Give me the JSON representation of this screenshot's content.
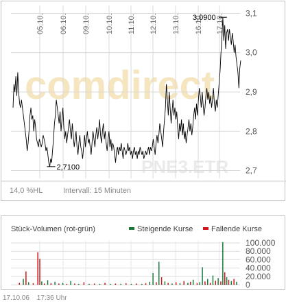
{
  "chart_data": [
    {
      "type": "line",
      "name_hidden": true,
      "watermark_logo": "comdirect",
      "watermark_symbol": "PNE3.ETR",
      "x_ticks": [
        "05.10.",
        "06.10.",
        "09.10.",
        "10.10.",
        "11.10.",
        "12.10.",
        "13.10.",
        "16.10.",
        "17.10."
      ],
      "y_ticks": [
        "3,1",
        "3,0",
        "2,9",
        "2,8",
        "2,7"
      ],
      "ylim": [
        2.68,
        3.12
      ],
      "annotations": [
        {
          "label": "3,0900",
          "x_index": 305,
          "value": 3.09
        },
        {
          "label": "2,7100",
          "x_index": 55,
          "value": 2.71
        }
      ],
      "footer_left": "14,0 %HL",
      "interval_label": "Intervall: 15 Minuten",
      "grid": true,
      "line_color": "#000000",
      "values": [
        2.86,
        2.92,
        2.9,
        2.94,
        2.89,
        2.95,
        2.9,
        2.87,
        2.86,
        2.88,
        2.86,
        2.84,
        2.82,
        2.8,
        2.78,
        2.75,
        2.77,
        2.8,
        2.84,
        2.86,
        2.83,
        2.84,
        2.8,
        2.83,
        2.81,
        2.78,
        2.77,
        2.76,
        2.78,
        2.77,
        2.76,
        2.77,
        2.79,
        2.78,
        2.77,
        2.75,
        2.76,
        2.74,
        2.72,
        2.71,
        2.73,
        2.72,
        2.75,
        2.78,
        2.82,
        2.84,
        2.88,
        2.86,
        2.84,
        2.82,
        2.85,
        2.8,
        2.83,
        2.86,
        2.81,
        2.78,
        2.8,
        2.77,
        2.79,
        2.81,
        2.83,
        2.8,
        2.78,
        2.82,
        2.79,
        2.76,
        2.78,
        2.8,
        2.76,
        2.74,
        2.77,
        2.79,
        2.76,
        2.75,
        2.73,
        2.76,
        2.79,
        2.76,
        2.78,
        2.8,
        2.77,
        2.78,
        2.76,
        2.74,
        2.77,
        2.8,
        2.78,
        2.76,
        2.79,
        2.81,
        2.78,
        2.8,
        2.83,
        2.79,
        2.77,
        2.8,
        2.82,
        2.78,
        2.8,
        2.77,
        2.75,
        2.78,
        2.8,
        2.76,
        2.78,
        2.75,
        2.77,
        2.76,
        2.74,
        2.72,
        2.75,
        2.76,
        2.74,
        2.76,
        2.75,
        2.77,
        2.75,
        2.73,
        2.76,
        2.75,
        2.74,
        2.75,
        2.77,
        2.75,
        2.76,
        2.74,
        2.75,
        2.73,
        2.75,
        2.76,
        2.74,
        2.75,
        2.73,
        2.75,
        2.74,
        2.76,
        2.75,
        2.74,
        2.75,
        2.73,
        2.74,
        2.75,
        2.74,
        2.75,
        2.76,
        2.74,
        2.76,
        2.75,
        2.76,
        2.78,
        2.76,
        2.74,
        2.77,
        2.79,
        2.77,
        2.79,
        2.82,
        2.8,
        2.78,
        2.76,
        2.8,
        2.83,
        2.86,
        2.92,
        2.88,
        2.84,
        2.9,
        2.86,
        2.82,
        2.85,
        2.88,
        2.84,
        2.86,
        2.83,
        2.85,
        2.81,
        2.78,
        2.82,
        2.8,
        2.83,
        2.79,
        2.82,
        2.78,
        2.8,
        2.77,
        2.79,
        2.81,
        2.83,
        2.8,
        2.82,
        2.79,
        2.81,
        2.84,
        2.86,
        2.83,
        2.87,
        2.84,
        2.88,
        2.91,
        2.89,
        2.86,
        2.9,
        2.87,
        2.84,
        2.86,
        2.89,
        2.91,
        2.88,
        2.9,
        2.87,
        2.89,
        2.86,
        2.88,
        2.91,
        2.87,
        2.85,
        2.88,
        2.86,
        2.89,
        2.92,
        2.95,
        3.0,
        3.04,
        3.09,
        3.03,
        3.07,
        3.01,
        3.05,
        3.06,
        3.03,
        3.06,
        3.04,
        3.02,
        3.05,
        3.03,
        3.0,
        3.02,
        2.99,
        2.97,
        2.95,
        2.91,
        2.96,
        2.98
      ]
    },
    {
      "type": "bar",
      "title": "Stück-Volumen (rot-grün)",
      "legend": [
        {
          "label": "Steigende Kurse",
          "color": "#1a7a3a"
        },
        {
          "label": "Fallende Kurse",
          "color": "#cc1a1a"
        }
      ],
      "y_ticks": [
        "100.000",
        "80.000",
        "60.000",
        "40.000",
        "20.000",
        "0"
      ],
      "ylim": [
        0,
        105000
      ],
      "up_color": "#1a7a3a",
      "down_color": "#cc1a1a",
      "bars": [
        {
          "x": 12,
          "v": 5000,
          "d": "down"
        },
        {
          "x": 18,
          "v": 14000,
          "d": "up"
        },
        {
          "x": 22,
          "v": 32000,
          "d": "down"
        },
        {
          "x": 26,
          "v": 6000,
          "d": "up"
        },
        {
          "x": 33,
          "v": 4000,
          "d": "down"
        },
        {
          "x": 40,
          "v": 78000,
          "d": "down"
        },
        {
          "x": 43,
          "v": 62000,
          "d": "down"
        },
        {
          "x": 46,
          "v": 8000,
          "d": "up"
        },
        {
          "x": 50,
          "v": 3000,
          "d": "down"
        },
        {
          "x": 55,
          "v": 11000,
          "d": "up"
        },
        {
          "x": 60,
          "v": 4000,
          "d": "down"
        },
        {
          "x": 66,
          "v": 7000,
          "d": "up"
        },
        {
          "x": 72,
          "v": 3000,
          "d": "down"
        },
        {
          "x": 78,
          "v": 5000,
          "d": "up"
        },
        {
          "x": 84,
          "v": 2000,
          "d": "down"
        },
        {
          "x": 90,
          "v": 9000,
          "d": "up"
        },
        {
          "x": 96,
          "v": 3000,
          "d": "down"
        },
        {
          "x": 102,
          "v": 2000,
          "d": "up"
        },
        {
          "x": 110,
          "v": 6000,
          "d": "down"
        },
        {
          "x": 118,
          "v": 2000,
          "d": "up"
        },
        {
          "x": 126,
          "v": 3000,
          "d": "down"
        },
        {
          "x": 134,
          "v": 2000,
          "d": "up"
        },
        {
          "x": 142,
          "v": 5000,
          "d": "down"
        },
        {
          "x": 150,
          "v": 2000,
          "d": "up"
        },
        {
          "x": 158,
          "v": 3000,
          "d": "down"
        },
        {
          "x": 166,
          "v": 2000,
          "d": "up"
        },
        {
          "x": 174,
          "v": 4000,
          "d": "down"
        },
        {
          "x": 182,
          "v": 2000,
          "d": "up"
        },
        {
          "x": 190,
          "v": 3000,
          "d": "down"
        },
        {
          "x": 198,
          "v": 2000,
          "d": "up"
        },
        {
          "x": 204,
          "v": 4000,
          "d": "down"
        },
        {
          "x": 210,
          "v": 7000,
          "d": "up"
        },
        {
          "x": 215,
          "v": 28000,
          "d": "up"
        },
        {
          "x": 220,
          "v": 6000,
          "d": "down"
        },
        {
          "x": 224,
          "v": 55000,
          "d": "up"
        },
        {
          "x": 228,
          "v": 18000,
          "d": "down"
        },
        {
          "x": 233,
          "v": 8000,
          "d": "up"
        },
        {
          "x": 238,
          "v": 5000,
          "d": "down"
        },
        {
          "x": 244,
          "v": 3000,
          "d": "up"
        },
        {
          "x": 250,
          "v": 6000,
          "d": "down"
        },
        {
          "x": 256,
          "v": 4000,
          "d": "up"
        },
        {
          "x": 262,
          "v": 9000,
          "d": "down"
        },
        {
          "x": 268,
          "v": 5000,
          "d": "up"
        },
        {
          "x": 272,
          "v": 7000,
          "d": "down"
        },
        {
          "x": 276,
          "v": 12000,
          "d": "up"
        },
        {
          "x": 282,
          "v": 4000,
          "d": "down"
        },
        {
          "x": 286,
          "v": 6000,
          "d": "up"
        },
        {
          "x": 290,
          "v": 42000,
          "d": "up"
        },
        {
          "x": 294,
          "v": 8000,
          "d": "down"
        },
        {
          "x": 298,
          "v": 14000,
          "d": "up"
        },
        {
          "x": 302,
          "v": 5000,
          "d": "down"
        },
        {
          "x": 306,
          "v": 22000,
          "d": "up"
        },
        {
          "x": 310,
          "v": 10000,
          "d": "down"
        },
        {
          "x": 314,
          "v": 16000,
          "d": "up"
        },
        {
          "x": 318,
          "v": 8000,
          "d": "down"
        },
        {
          "x": 321,
          "v": 102000,
          "d": "up"
        },
        {
          "x": 324,
          "v": 30000,
          "d": "down"
        },
        {
          "x": 327,
          "v": 18000,
          "d": "up"
        },
        {
          "x": 330,
          "v": 12000,
          "d": "down"
        },
        {
          "x": 334,
          "v": 9000,
          "d": "up"
        },
        {
          "x": 338,
          "v": 14000,
          "d": "down"
        },
        {
          "x": 342,
          "v": 7000,
          "d": "up"
        }
      ]
    }
  ],
  "footer": {
    "date": "17.10.06",
    "time": "17:36 Uhr"
  }
}
